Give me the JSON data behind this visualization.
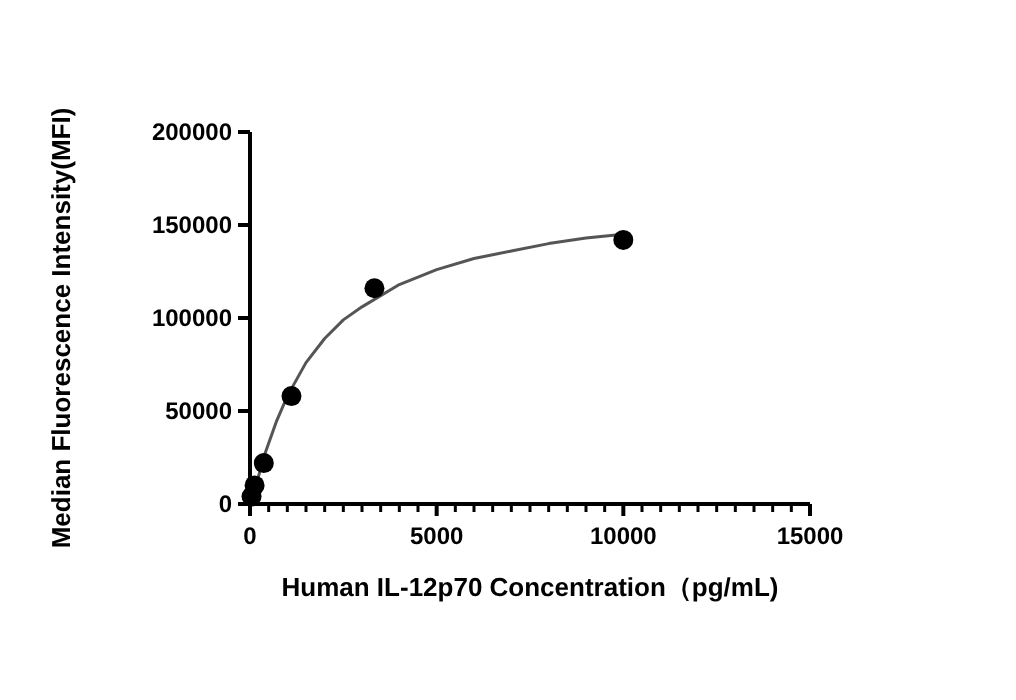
{
  "chart_data": {
    "type": "scatter",
    "xlabel": "Human IL-12p70 Concentration（pg/mL)",
    "ylabel": "Median Fluorescence Intensity(MFI)",
    "xlim": [
      0,
      15000
    ],
    "ylim": [
      0,
      200000
    ],
    "xticks": [
      0,
      5000,
      10000,
      15000
    ],
    "yticks": [
      0,
      50000,
      100000,
      150000,
      200000
    ],
    "grid": false,
    "series": [
      {
        "type": "line",
        "color": "#555555",
        "marker": "none",
        "line_style": "solid",
        "x": [
          0,
          100,
          200,
          400,
          700,
          1000,
          1500,
          2000,
          2500,
          3000,
          4000,
          5000,
          6000,
          7000,
          8000,
          9000,
          10000
        ],
        "values": [
          0,
          6000,
          13000,
          27000,
          44000,
          58000,
          76000,
          89000,
          99000,
          106000,
          118000,
          126000,
          132000,
          136000,
          140000,
          143000,
          145000
        ]
      },
      {
        "color": "#000000",
        "marker": "circle",
        "x": [
          41,
          123,
          370,
          1111,
          3333,
          10000
        ],
        "values": [
          4000,
          10000,
          22000,
          58000,
          116000,
          142000
        ]
      }
    ]
  }
}
